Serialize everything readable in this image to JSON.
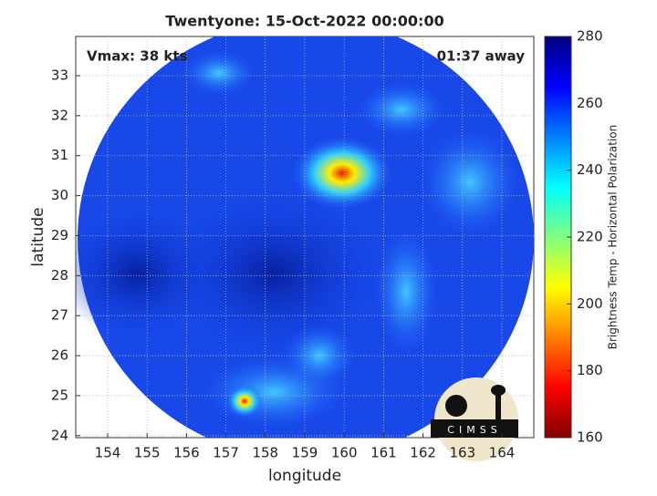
{
  "chart_data": {
    "type": "image",
    "title": "Twentyone: 15-Oct-2022 00:00:00",
    "x_label": "longitude",
    "y_label": "latitude",
    "annotations": [
      "Vmax: 38 kts",
      "01:37 away"
    ],
    "logo": "CIMSS",
    "xlim": [
      153.19,
      164.81
    ],
    "xticks": [
      154,
      155,
      156,
      157,
      158,
      159,
      160,
      161,
      162,
      163,
      164
    ],
    "ylim": [
      23.95,
      33.98
    ],
    "yticks": [
      24,
      25,
      26,
      27,
      28,
      29,
      30,
      31,
      32,
      33
    ],
    "grid": true,
    "colorbar": {
      "label": "Brightness Temp - Horizontal Polarization",
      "colormap": "jet",
      "lim": [
        160,
        280
      ],
      "ticks": [
        160,
        180,
        200,
        220,
        240,
        260,
        280
      ]
    }
  }
}
